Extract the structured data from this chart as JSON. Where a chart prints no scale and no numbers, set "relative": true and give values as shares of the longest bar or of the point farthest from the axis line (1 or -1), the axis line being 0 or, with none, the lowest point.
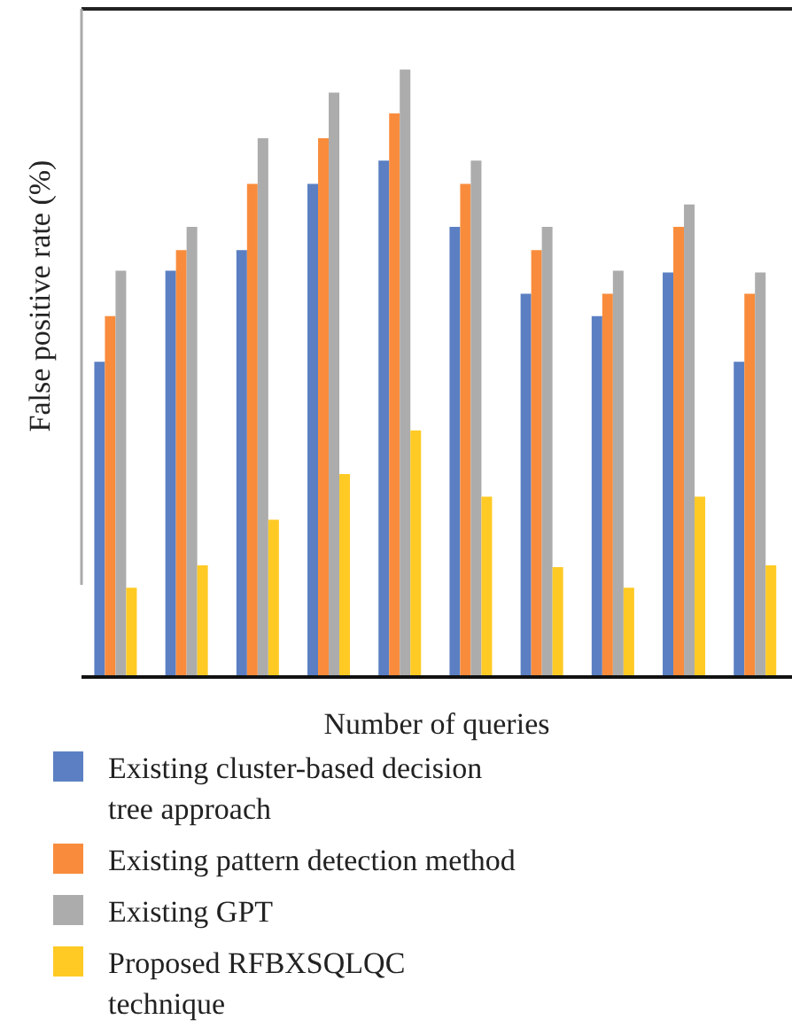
{
  "chart_data": {
    "type": "bar",
    "relative": true,
    "xlabel": "Number of queries",
    "ylabel": "False positive rate (%)",
    "categories": [
      null,
      null,
      null,
      null,
      null,
      null,
      null,
      null,
      null,
      null
    ],
    "legend": "bottom",
    "grid": false,
    "series": [
      {
        "name": "Existing cluster-based decision tree approach",
        "color": "#5b7fc2",
        "values": [
          0.519,
          0.669,
          0.703,
          0.812,
          0.85,
          0.741,
          0.631,
          0.594,
          0.666,
          0.519
        ]
      },
      {
        "name": "Existing pattern detection method",
        "color": "#f98c3c",
        "values": [
          0.594,
          0.703,
          0.812,
          0.887,
          0.928,
          0.812,
          0.703,
          0.631,
          0.741,
          0.631
        ]
      },
      {
        "name": "Existing GPT",
        "color": "#acacac",
        "values": [
          0.669,
          0.741,
          0.887,
          0.962,
          1,
          0.85,
          0.741,
          0.669,
          0.778,
          0.666
        ]
      },
      {
        "name": "Proposed RFBXSQLQC technique",
        "color": "#ffca24",
        "values": [
          0.147,
          0.184,
          0.259,
          0.334,
          0.406,
          0.297,
          0.181,
          0.147,
          0.297,
          0.184
        ]
      }
    ]
  }
}
